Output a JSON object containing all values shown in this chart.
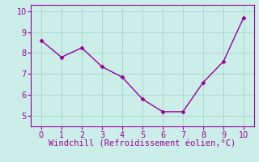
{
  "x": [
    0,
    1,
    2,
    3,
    4,
    5,
    6,
    7,
    8,
    9,
    10
  ],
  "y": [
    8.6,
    7.8,
    8.25,
    7.35,
    6.85,
    5.8,
    5.2,
    5.2,
    6.6,
    7.6,
    9.7
  ],
  "line_color": "#990099",
  "marker": "D",
  "marker_size": 2.5,
  "line_width": 1.0,
  "xlabel": "Windchill (Refroidissement éolien,°C)",
  "xlabel_color": "#990099",
  "background_color": "#cceee8",
  "grid_color": "#aad8d2",
  "xlim": [
    -0.5,
    10.5
  ],
  "ylim": [
    4.5,
    10.3
  ],
  "xticks": [
    0,
    1,
    2,
    3,
    4,
    5,
    6,
    7,
    8,
    9,
    10
  ],
  "yticks": [
    5,
    6,
    7,
    8,
    9,
    10
  ],
  "tick_label_color": "#990099",
  "spine_color": "#990099",
  "font_size": 7,
  "xlabel_fontsize": 7.5
}
